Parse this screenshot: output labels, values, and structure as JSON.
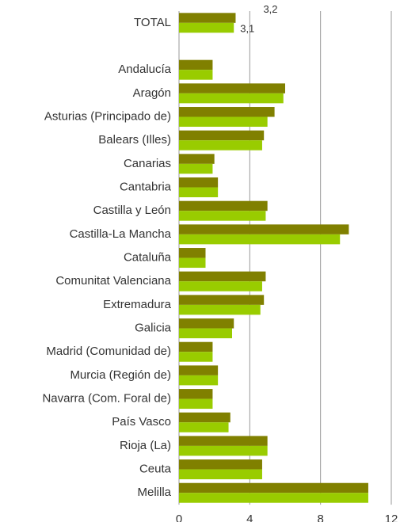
{
  "chart_data": {
    "type": "bar",
    "orientation": "horizontal",
    "categories": [
      "TOTAL",
      null,
      "Andalucía",
      "Aragón",
      "Asturias (Principado de)",
      "Balears (Illes)",
      "Canarias",
      "Cantabria",
      "Castilla y León",
      "Castilla-La Mancha",
      "Cataluña",
      "Comunitat Valenciana",
      "Extremadura",
      "Galicia",
      "Madrid (Comunidad de)",
      "Murcia (Región de)",
      "Navarra (Com. Foral de)",
      "País Vasco",
      "Rioja (La)",
      "Ceuta",
      "Melilla"
    ],
    "series": [
      {
        "color": "#808000",
        "values": [
          3.2,
          null,
          1.9,
          6.0,
          5.4,
          4.8,
          2.0,
          2.2,
          5.0,
          9.6,
          1.5,
          4.9,
          4.8,
          3.1,
          1.9,
          2.2,
          1.9,
          2.9,
          5.0,
          4.7,
          10.7
        ],
        "value_labels": [
          "3,2",
          null,
          null,
          null,
          null,
          null,
          null,
          null,
          null,
          null,
          null,
          null,
          null,
          null,
          null,
          null,
          null,
          null,
          null,
          null,
          null
        ]
      },
      {
        "color": "#99cc00",
        "values": [
          3.1,
          null,
          1.9,
          5.9,
          5.0,
          4.7,
          1.9,
          2.2,
          4.9,
          9.1,
          1.5,
          4.7,
          4.6,
          3.0,
          1.9,
          2.2,
          1.9,
          2.8,
          5.0,
          4.7,
          10.7
        ],
        "value_labels": [
          "3,1",
          null,
          null,
          null,
          null,
          null,
          null,
          null,
          null,
          null,
          null,
          null,
          null,
          null,
          null,
          null,
          null,
          null,
          null,
          null,
          null
        ]
      }
    ],
    "xlim": [
      0,
      12
    ],
    "xticks": [
      0,
      4,
      8,
      12
    ],
    "grid": true
  }
}
